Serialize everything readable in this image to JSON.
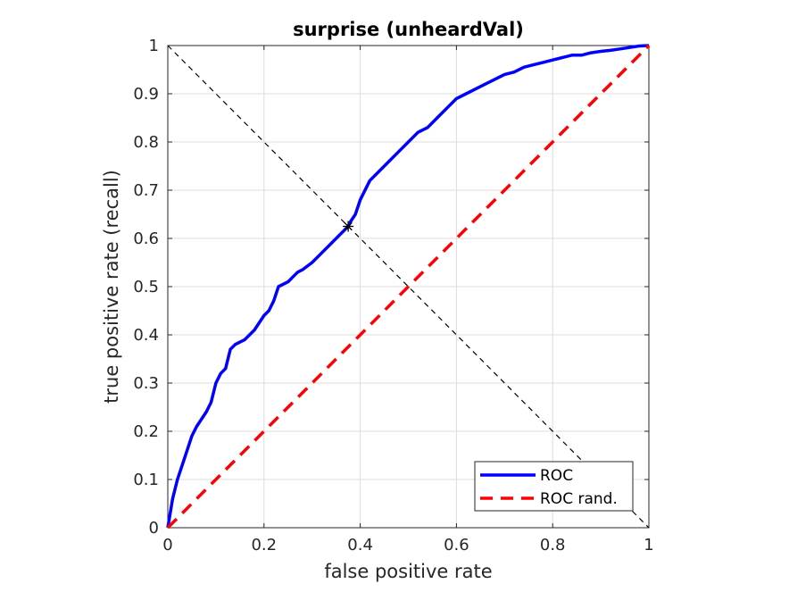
{
  "chart_data": {
    "type": "line",
    "title": "surprise (unheardVal)",
    "xlabel": "false positive rate",
    "ylabel": "true positive rate (recall)",
    "xlim": [
      0,
      1
    ],
    "ylim": [
      0,
      1
    ],
    "xticks": [
      "0",
      "0.2",
      "0.4",
      "0.6",
      "0.8",
      "1"
    ],
    "yticks": [
      "0",
      "0.1",
      "0.2",
      "0.3",
      "0.4",
      "0.5",
      "0.6",
      "0.7",
      "0.8",
      "0.9",
      "1"
    ],
    "grid": true,
    "legend_position": "bottom-right",
    "series": [
      {
        "name": "ROC",
        "color": "#0000ff",
        "style": "solid",
        "x": [
          0,
          0.005,
          0.01,
          0.015,
          0.02,
          0.03,
          0.04,
          0.05,
          0.06,
          0.07,
          0.08,
          0.09,
          0.1,
          0.11,
          0.12,
          0.13,
          0.14,
          0.15,
          0.16,
          0.18,
          0.2,
          0.21,
          0.22,
          0.23,
          0.25,
          0.26,
          0.27,
          0.28,
          0.3,
          0.32,
          0.34,
          0.36,
          0.375,
          0.38,
          0.39,
          0.4,
          0.42,
          0.44,
          0.46,
          0.48,
          0.5,
          0.52,
          0.54,
          0.56,
          0.58,
          0.6,
          0.62,
          0.64,
          0.66,
          0.68,
          0.7,
          0.72,
          0.74,
          0.76,
          0.78,
          0.8,
          0.82,
          0.84,
          0.86,
          0.88,
          0.9,
          0.92,
          0.94,
          0.96,
          0.98,
          1.0
        ],
        "y": [
          0,
          0.03,
          0.06,
          0.08,
          0.1,
          0.13,
          0.16,
          0.19,
          0.21,
          0.225,
          0.24,
          0.26,
          0.3,
          0.32,
          0.33,
          0.37,
          0.38,
          0.385,
          0.39,
          0.41,
          0.44,
          0.45,
          0.47,
          0.5,
          0.51,
          0.52,
          0.53,
          0.535,
          0.55,
          0.57,
          0.59,
          0.61,
          0.625,
          0.635,
          0.65,
          0.68,
          0.72,
          0.74,
          0.76,
          0.78,
          0.8,
          0.82,
          0.83,
          0.85,
          0.87,
          0.89,
          0.9,
          0.91,
          0.92,
          0.93,
          0.94,
          0.945,
          0.955,
          0.96,
          0.965,
          0.97,
          0.975,
          0.98,
          0.98,
          0.985,
          0.988,
          0.99,
          0.993,
          0.996,
          0.999,
          1.0
        ]
      },
      {
        "name": "ROC rand.",
        "color": "#ff0000",
        "style": "dashed",
        "x": [
          0,
          1
        ],
        "y": [
          0,
          1
        ]
      }
    ],
    "annotations": [
      {
        "type": "line",
        "style": "dashed",
        "color": "#000000",
        "x": [
          0,
          1
        ],
        "y": [
          1,
          0
        ]
      },
      {
        "type": "marker",
        "symbol": "asterisk",
        "color": "#000000",
        "x": 0.375,
        "y": 0.625
      }
    ]
  }
}
